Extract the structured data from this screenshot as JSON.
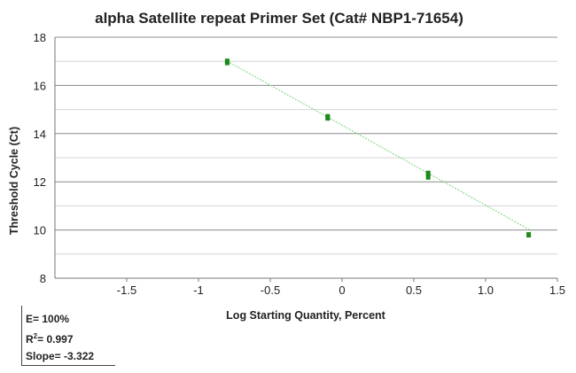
{
  "chart_data": {
    "type": "scatter",
    "title": "alpha Satellite repeat Primer Set (Cat# NBP1-71654)",
    "xlabel": "Log Starting Quantity, Percent",
    "ylabel": "Threshold Cycle (Ct)",
    "xlim": [
      -2.0,
      1.5
    ],
    "ylim": [
      8,
      18
    ],
    "x_ticks": [
      -1.5,
      -1,
      -0.5,
      0,
      0.5,
      1.0,
      1.5
    ],
    "x_tick_labels": [
      "-1.5",
      "-1",
      "-0.5",
      "0",
      "0.5",
      "1.0",
      "1.5"
    ],
    "y_ticks": [
      8,
      10,
      12,
      14,
      16,
      18
    ],
    "y_tick_labels": [
      "8",
      "10",
      "12",
      "14",
      "16",
      "18"
    ],
    "y_minor_grid_step": 1,
    "grid": true,
    "series": [
      {
        "color": "#1a8a1a",
        "points": [
          {
            "x": -0.8,
            "y": 17.0
          },
          {
            "x": -0.8,
            "y": 16.95
          },
          {
            "x": -0.1,
            "y": 14.7
          },
          {
            "x": -0.1,
            "y": 14.65
          },
          {
            "x": 0.6,
            "y": 12.35
          },
          {
            "x": 0.6,
            "y": 12.2
          },
          {
            "x": 1.3,
            "y": 9.8
          }
        ]
      }
    ],
    "fit_line": {
      "color": "#8fd88f",
      "x_start": -0.8,
      "x_end": 1.32,
      "slope": -3.322,
      "intercept": 14.35
    },
    "stats": {
      "efficiency": "E= 100%",
      "r2_prefix": "R",
      "r2_sup": "2",
      "r2_value": "= 0.997",
      "slope": "Slope= -3.322"
    }
  }
}
